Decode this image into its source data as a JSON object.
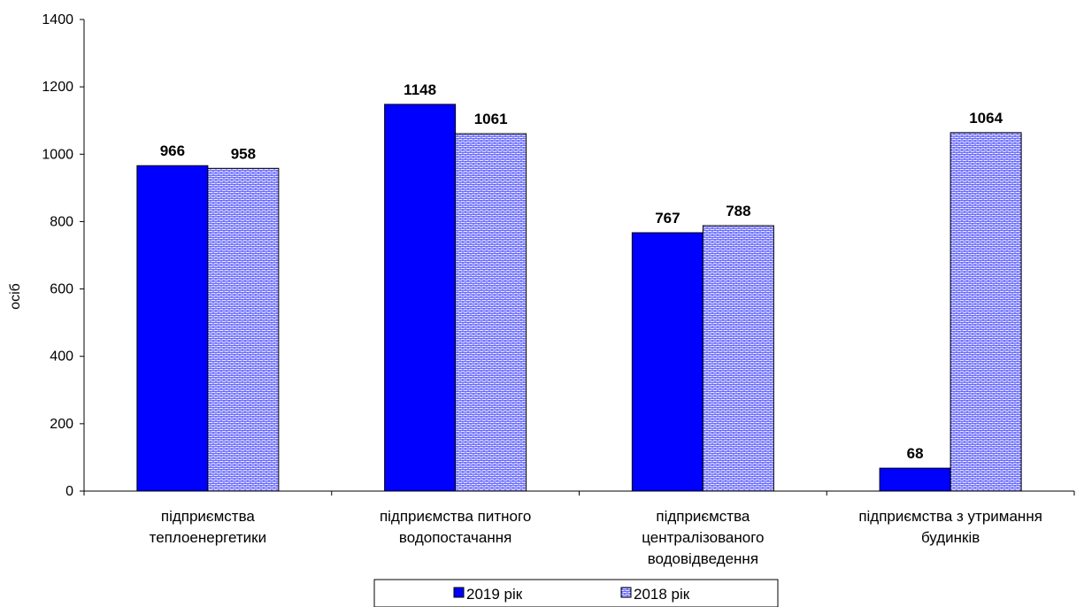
{
  "chart_data": {
    "type": "bar",
    "title": "",
    "xlabel": "",
    "ylabel": "осіб",
    "ylim": [
      0,
      1400
    ],
    "yticks": [
      0,
      200,
      400,
      600,
      800,
      1000,
      1200,
      1400
    ],
    "grid": false,
    "legend_position": "bottom",
    "categories": [
      [
        "підприємства",
        "теплоенергетики"
      ],
      [
        "підприємства питного",
        "водопостачання"
      ],
      [
        "підприємства",
        "централізованого",
        "водовідведення"
      ],
      [
        "підприємства з утримання",
        "будинків"
      ]
    ],
    "series": [
      {
        "name": "2019 рік",
        "values": [
          966,
          1148,
          767,
          68
        ],
        "color": "#0000FF",
        "pattern": "solid"
      },
      {
        "name": "2018 рік",
        "values": [
          958,
          1061,
          788,
          1064
        ],
        "color": "#C8D0FF",
        "pattern": "brick"
      }
    ]
  }
}
